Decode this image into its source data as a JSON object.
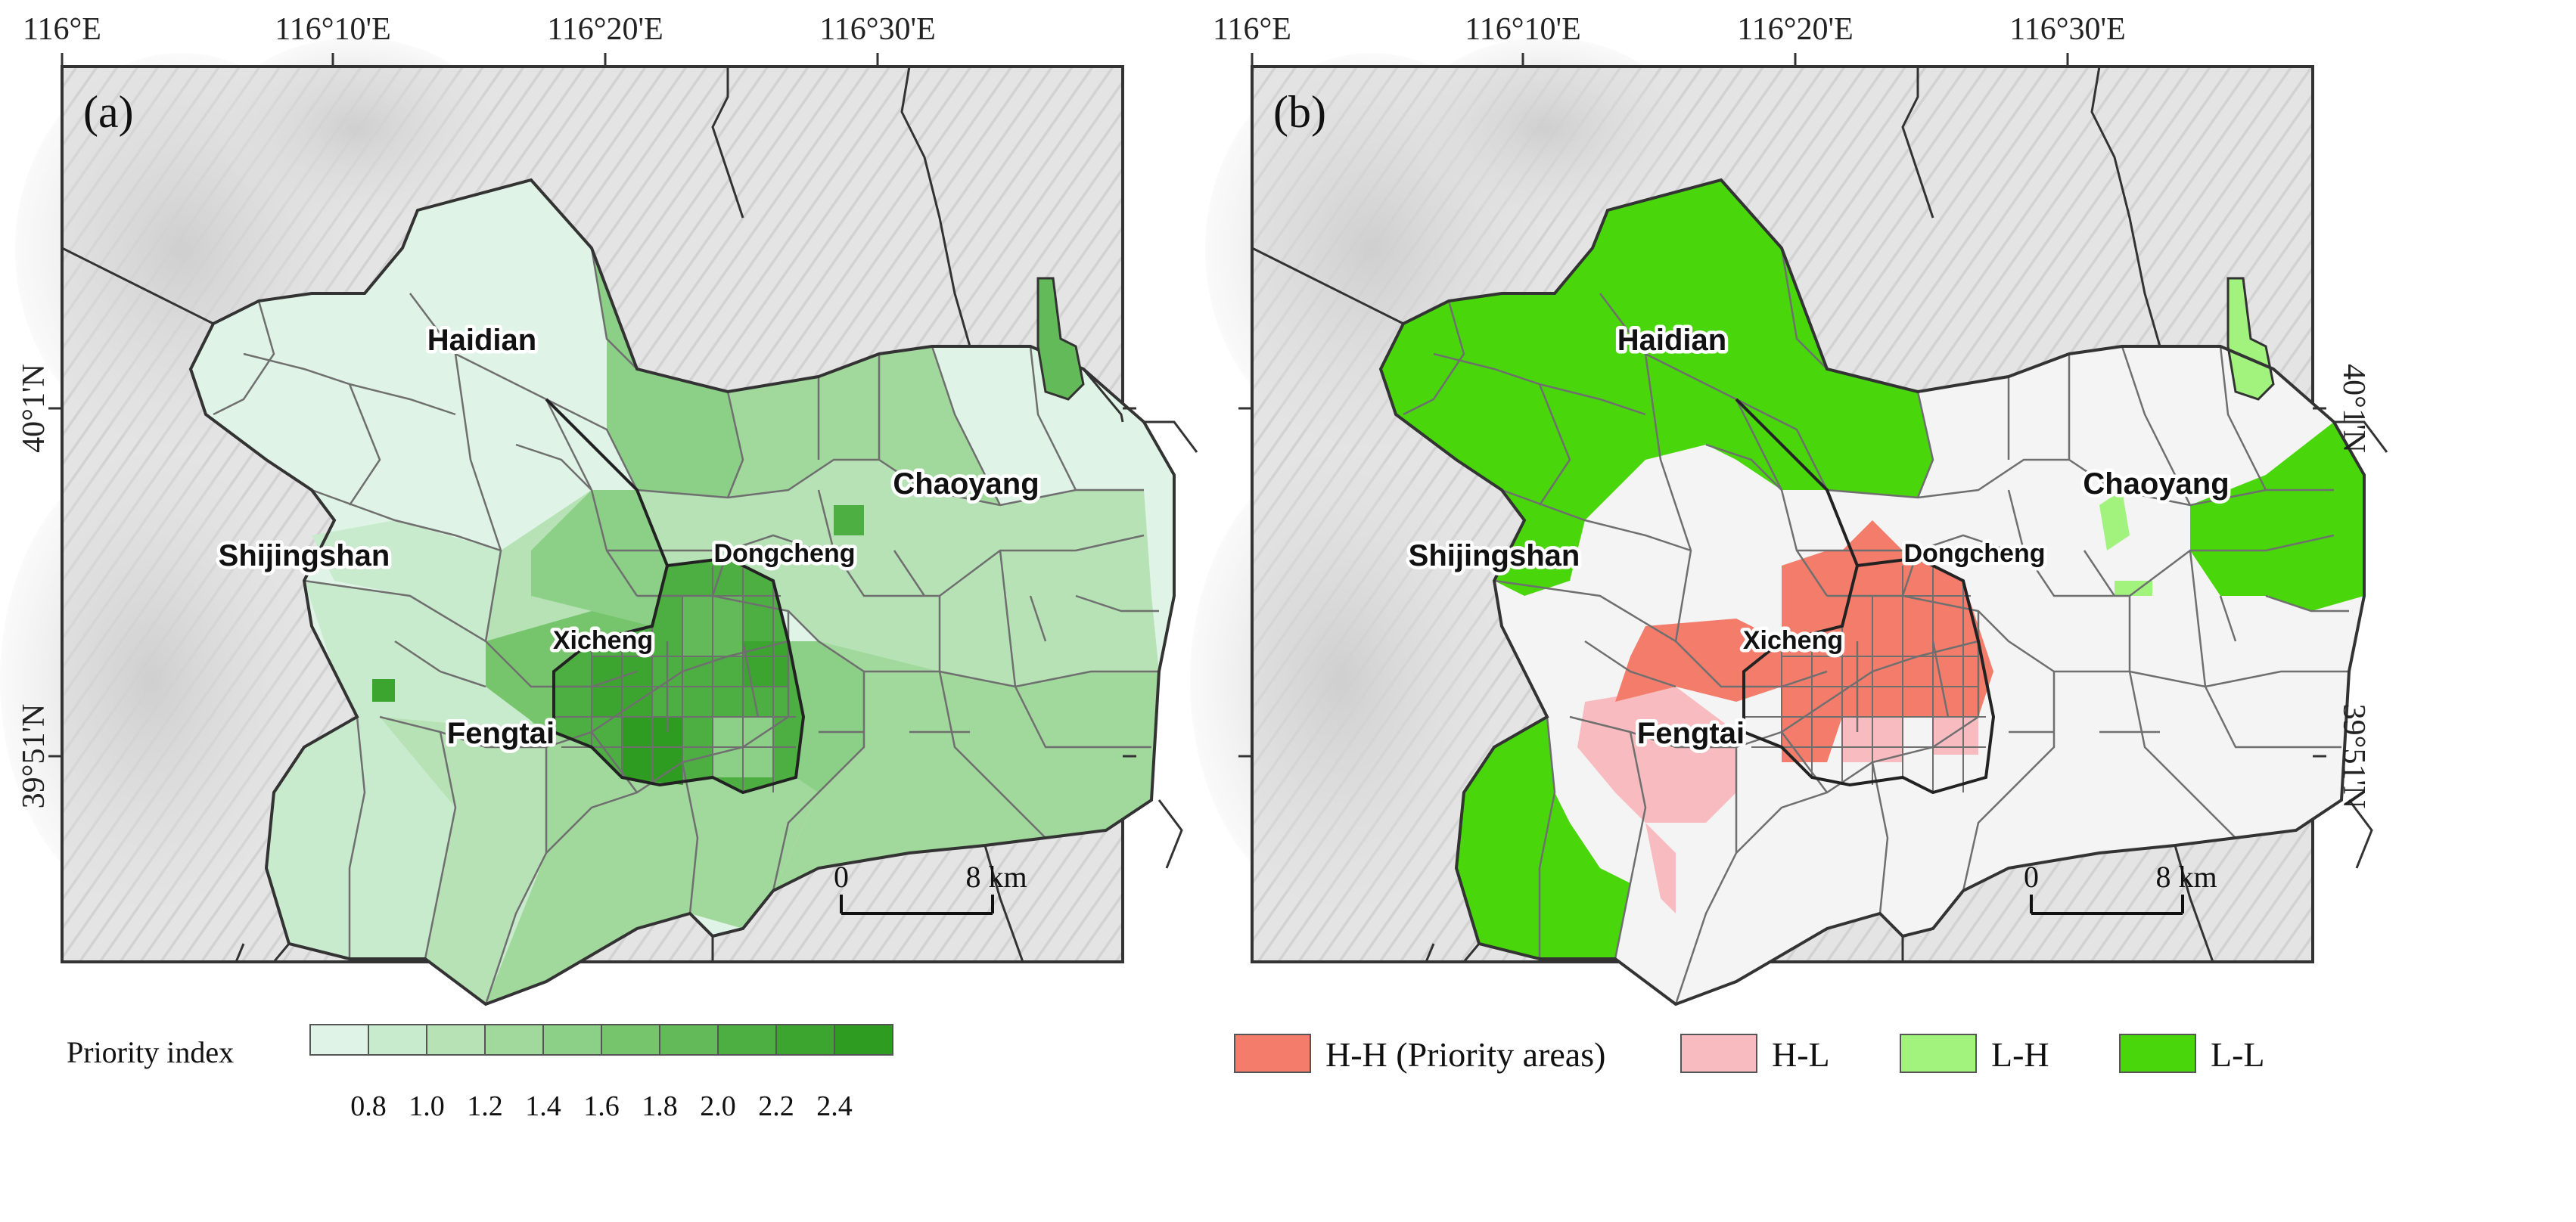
{
  "colors": {
    "basemap": "#e3e3e3",
    "boundary": "#6f6f6f",
    "outer_line": "#333333",
    "priority_ramp": [
      "#dff3e6",
      "#c9ebcd",
      "#b6e2b6",
      "#a1d99d",
      "#8ccf87",
      "#76c56d",
      "#62bb58",
      "#4daf42",
      "#3ca52f",
      "#2e9c20"
    ],
    "hh": "#f47c6b",
    "hl": "#f8bcc0",
    "lh": "#a2f27e",
    "ll": "#49d60b",
    "ns": "#f4f4f4"
  },
  "coords": {
    "lon_labels": [
      "116°E",
      "116°10'E",
      "116°20'E",
      "116°30'E"
    ],
    "lat_labels": [
      "40°1'N",
      "39°51'N"
    ]
  },
  "panel_a": {
    "letter": "(a)",
    "districts": [
      "Haidian",
      "Chaoyang",
      "Shijingshan",
      "Dongcheng",
      "Xicheng",
      "Fengtai"
    ],
    "scale": {
      "zero": "0",
      "distance": "8 km"
    },
    "legend": {
      "title": "Priority index",
      "ticks": [
        "0.8",
        "1.0",
        "1.2",
        "1.4",
        "1.6",
        "1.8",
        "2.0",
        "2.2",
        "2.4"
      ]
    }
  },
  "panel_b": {
    "letter": "(b)",
    "districts": [
      "Haidian",
      "Chaoyang",
      "Shijingshan",
      "Dongcheng",
      "Xicheng",
      "Fengtai"
    ],
    "scale": {
      "zero": "0",
      "distance": "8 km"
    },
    "legend": {
      "items": [
        {
          "label": "H-H (Priority areas)",
          "color_key": "hh"
        },
        {
          "label": "H-L",
          "color_key": "hl"
        },
        {
          "label": "L-H",
          "color_key": "lh"
        },
        {
          "label": "L-L",
          "color_key": "ll"
        }
      ]
    }
  }
}
